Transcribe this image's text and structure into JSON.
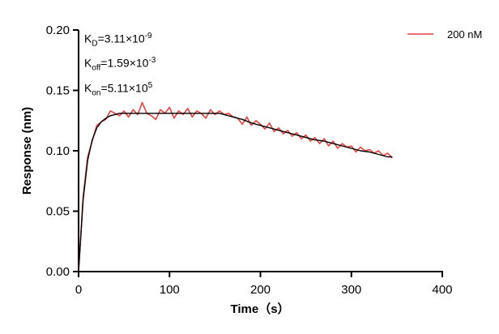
{
  "chart_data": {
    "type": "line",
    "title": "",
    "xlabel": "Time（s）",
    "ylabel": "Response (nm)",
    "xlim": [
      0,
      400
    ],
    "ylim": [
      0,
      0.2
    ],
    "xticks": [
      "0",
      "100",
      "200",
      "300",
      "400"
    ],
    "yticks": [
      "0.00",
      "0.05",
      "0.10",
      "0.15",
      "0.20"
    ],
    "grid": false,
    "legend_placement": "top-right",
    "annotations": {
      "kd": {
        "base": "K",
        "sub": "D",
        "mant": "=3.11×10",
        "exp": "-9"
      },
      "koff": {
        "base": "K",
        "sub": "off",
        "mant": "=1.59×10",
        "exp": "-3"
      },
      "kon": {
        "base": "K",
        "sub": "on",
        "mant": "=5.11×10",
        "exp": "5"
      }
    },
    "series": [
      {
        "name": "200 nM",
        "color": "#e8413f",
        "x": [
          0,
          5,
          10,
          15,
          20,
          25,
          30,
          35,
          40,
          45,
          50,
          55,
          60,
          65,
          70,
          75,
          80,
          85,
          90,
          95,
          100,
          105,
          110,
          115,
          120,
          125,
          130,
          135,
          140,
          145,
          150,
          155,
          160,
          165,
          170,
          175,
          180,
          185,
          190,
          195,
          200,
          205,
          210,
          215,
          220,
          225,
          230,
          235,
          240,
          245,
          250,
          255,
          260,
          265,
          270,
          275,
          280,
          285,
          290,
          295,
          300,
          305,
          310,
          315,
          320,
          325,
          330,
          335,
          340,
          345
        ],
        "y": [
          0.0,
          0.062,
          0.095,
          0.108,
          0.121,
          0.124,
          0.126,
          0.133,
          0.131,
          0.129,
          0.133,
          0.128,
          0.134,
          0.13,
          0.14,
          0.131,
          0.129,
          0.126,
          0.134,
          0.131,
          0.136,
          0.127,
          0.133,
          0.13,
          0.135,
          0.128,
          0.133,
          0.131,
          0.127,
          0.134,
          0.13,
          0.133,
          0.13,
          0.131,
          0.128,
          0.127,
          0.122,
          0.128,
          0.121,
          0.125,
          0.122,
          0.118,
          0.123,
          0.116,
          0.119,
          0.114,
          0.117,
          0.112,
          0.115,
          0.11,
          0.113,
          0.108,
          0.111,
          0.106,
          0.11,
          0.104,
          0.108,
          0.102,
          0.106,
          0.103,
          0.104,
          0.099,
          0.103,
          0.1,
          0.101,
          0.098,
          0.1,
          0.096,
          0.098,
          0.094
        ]
      },
      {
        "color": "#000000",
        "x": [
          0,
          5,
          10,
          15,
          20,
          25,
          30,
          35,
          40,
          45,
          100,
          155,
          160,
          170,
          180,
          190,
          200,
          210,
          220,
          230,
          240,
          250,
          260,
          270,
          280,
          290,
          300,
          310,
          320,
          330,
          340,
          345
        ],
        "y": [
          0,
          0.059,
          0.092,
          0.109,
          0.119,
          0.124,
          0.127,
          0.129,
          0.13,
          0.131,
          0.131,
          0.131,
          0.13,
          0.128,
          0.126,
          0.123,
          0.121,
          0.119,
          0.117,
          0.115,
          0.113,
          0.111,
          0.109,
          0.108,
          0.106,
          0.104,
          0.102,
          0.1,
          0.099,
          0.097,
          0.095,
          0.095
        ]
      }
    ]
  }
}
